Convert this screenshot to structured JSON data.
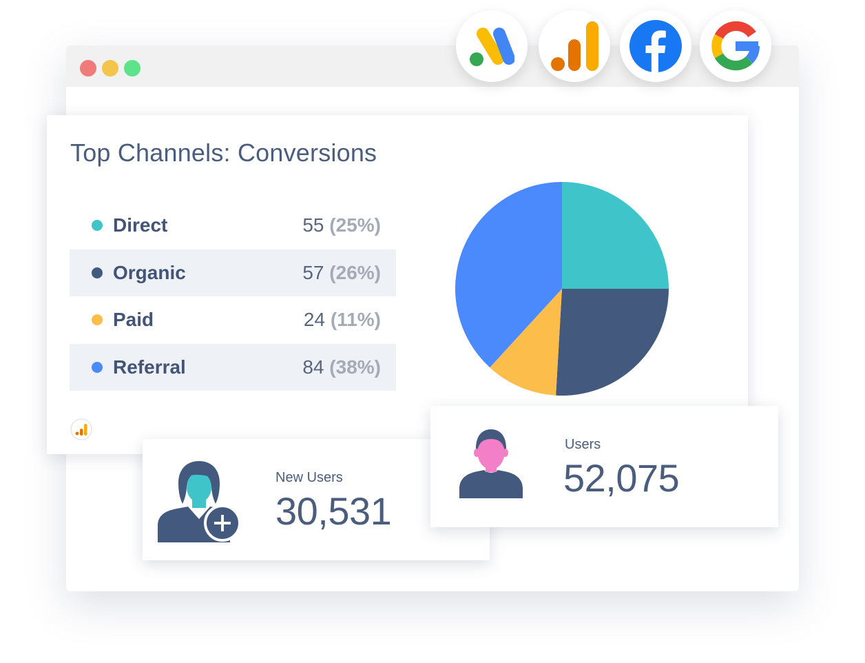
{
  "browser": {
    "window_buttons": [
      "close",
      "minimize",
      "maximize"
    ]
  },
  "integrations": [
    {
      "icon": "google-ads-icon"
    },
    {
      "icon": "google-analytics-icon"
    },
    {
      "icon": "facebook-icon"
    },
    {
      "icon": "google-icon"
    }
  ],
  "panel": {
    "title": "Top Channels: Conversions",
    "source_icon": "google-analytics-icon"
  },
  "legend": {
    "rows": [
      {
        "label": "Direct",
        "value": "55",
        "pct": "(25%)",
        "color": "#3fc5c9"
      },
      {
        "label": "Organic",
        "value": "57",
        "pct": "(26%)",
        "color": "#435a7e"
      },
      {
        "label": "Paid",
        "value": "24",
        "pct": "(11%)",
        "color": "#fdbd4b"
      },
      {
        "label": "Referral",
        "value": "84",
        "pct": "(38%)",
        "color": "#4b8afc"
      }
    ]
  },
  "chart_data": {
    "type": "pie",
    "categories": [
      "Direct",
      "Organic",
      "Paid",
      "Referral"
    ],
    "values": [
      55,
      57,
      24,
      84
    ],
    "colors": [
      "#3fc5c9",
      "#435a7e",
      "#fdbd4b",
      "#4b8afc"
    ]
  },
  "cards": {
    "new_users": {
      "label": "New Users",
      "value": "30,531",
      "icon": "add-user-icon"
    },
    "users": {
      "label": "Users",
      "value": "52,075",
      "icon": "user-icon"
    }
  }
}
